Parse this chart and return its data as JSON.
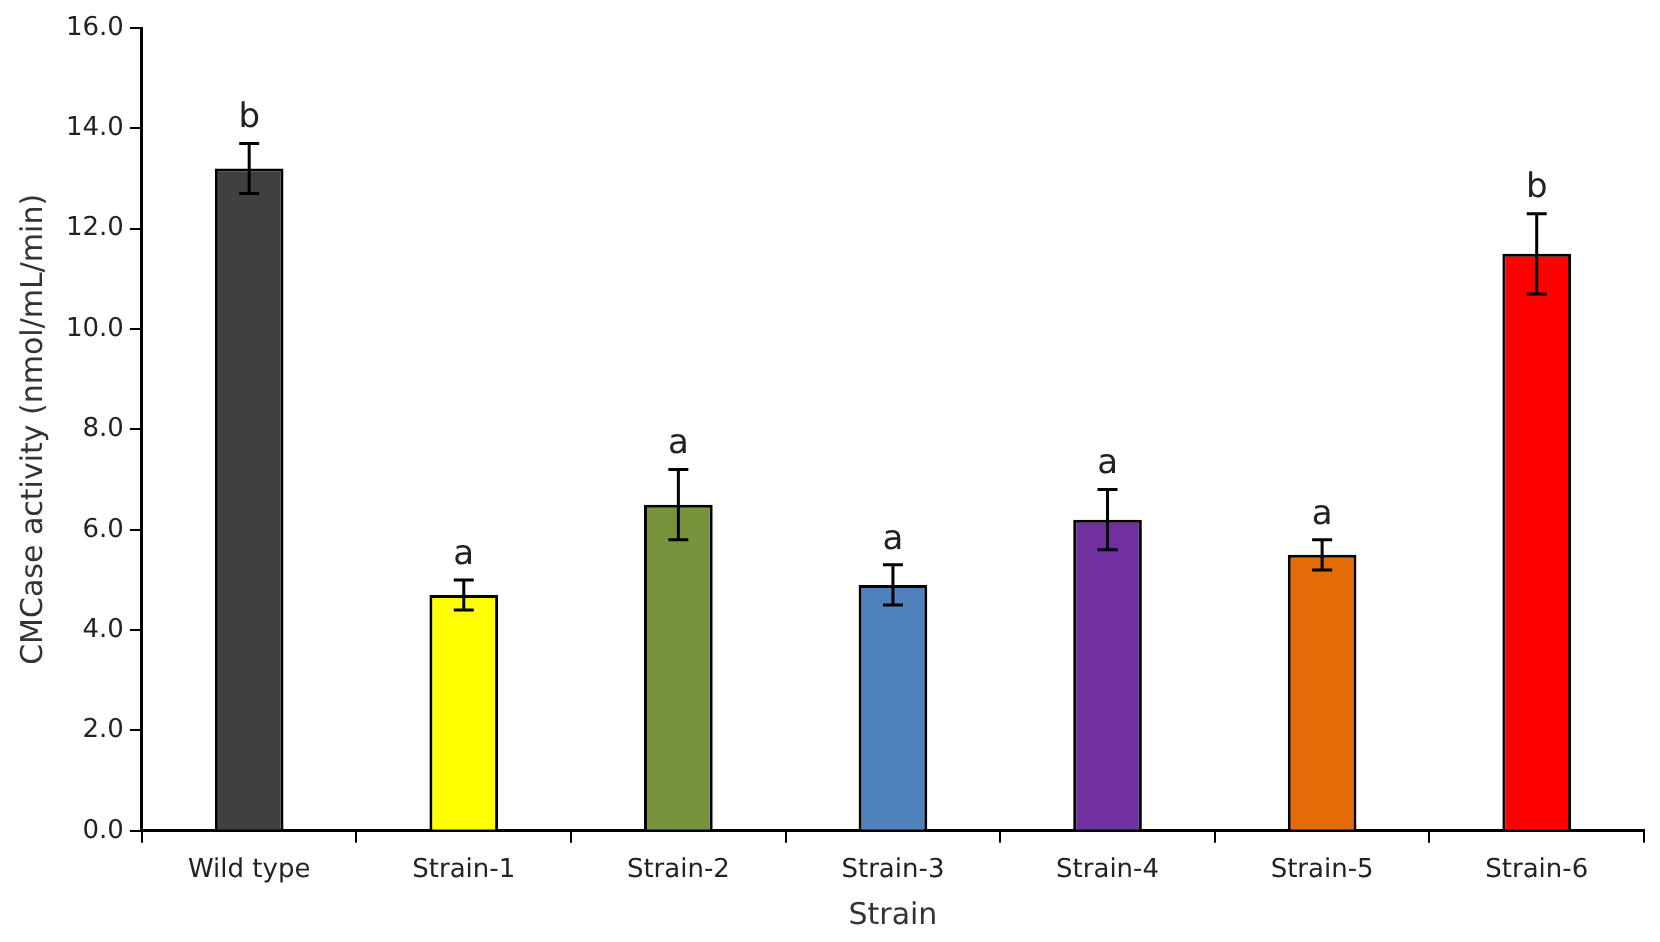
{
  "chart_data": {
    "type": "bar",
    "xlabel": "Strain",
    "ylabel": "CMCase activity (nmol/mL/min)",
    "categories": [
      "Wild type",
      "Strain-1",
      "Strain-2",
      "Strain-3",
      "Strain-4",
      "Strain-5",
      "Strain-6"
    ],
    "values": [
      13.2,
      4.7,
      6.5,
      4.9,
      6.2,
      5.5,
      11.5
    ],
    "errors": [
      0.5,
      0.3,
      0.7,
      0.4,
      0.6,
      0.3,
      0.8
    ],
    "colors": [
      "#404040",
      "#ffff00",
      "#77933c",
      "#4f81bd",
      "#7030a0",
      "#e36c09",
      "#ff0000"
    ],
    "ylim": [
      0,
      16
    ],
    "yticks": [
      {
        "value": 0,
        "label": "0.0"
      },
      {
        "value": 2,
        "label": "2.0"
      },
      {
        "value": 4,
        "label": "4.0"
      },
      {
        "value": 6,
        "label": "6.0"
      },
      {
        "value": 8,
        "label": "8.0"
      },
      {
        "value": 10,
        "label": "10.0"
      },
      {
        "value": 12,
        "label": "12.0"
      },
      {
        "value": 14,
        "label": "14.0"
      },
      {
        "value": 16,
        "label": "16.0"
      }
    ],
    "annotations": [
      {
        "text": "b",
        "x": "Wild type",
        "y": 13.7
      },
      {
        "text": "a",
        "x": "Strain-1",
        "y": 5.0
      },
      {
        "text": "a",
        "x": "Strain-2",
        "y": 7.2
      },
      {
        "text": "a",
        "x": "Strain-3",
        "y": 5.3
      },
      {
        "text": "a",
        "x": "Strain-4",
        "y": 6.8
      },
      {
        "text": "a",
        "x": "Strain-5",
        "y": 5.8
      },
      {
        "text": "b",
        "x": "Strain-6",
        "y": 12.3
      }
    ],
    "grid": false,
    "legend": false
  }
}
